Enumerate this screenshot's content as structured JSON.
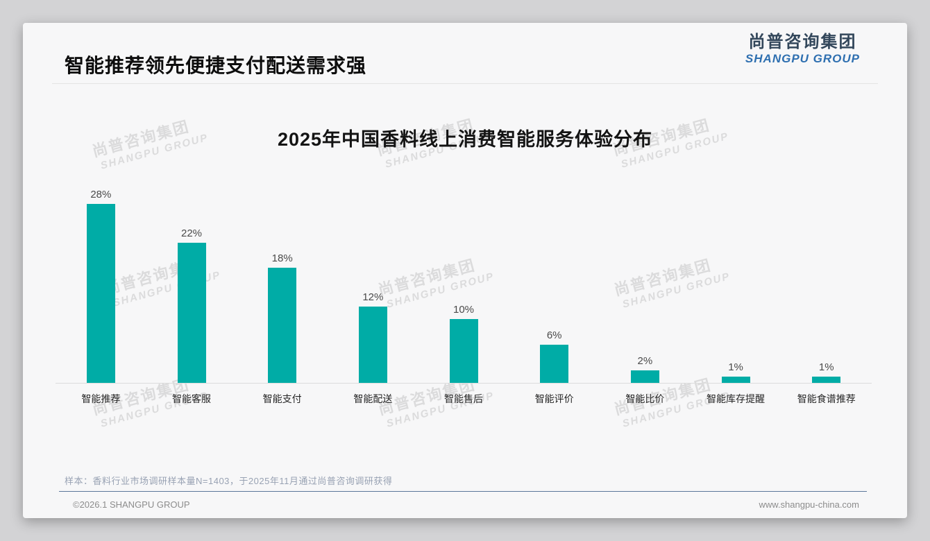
{
  "page": {
    "title": "智能推荐领先便捷支付配送需求强",
    "logo": {
      "cn": "尚普咨询集团",
      "en": "SHANGPU GROUP"
    },
    "watermark": {
      "cn": "尚普咨询集团",
      "en": "SHANGPU GROUP"
    },
    "footer": {
      "note": "样本：香料行业市场调研样本量N=1403，于2025年11月通过尚普咨询调研获得",
      "copyright": "©2026.1 SHANGPU GROUP",
      "website": "www.shangpu-china.com"
    }
  },
  "colors": {
    "bar": "#00aca6",
    "logo_cn": "#33475b",
    "logo_en": "#2e6fb0",
    "card_background": "#f7f7f8",
    "page_background": "#d3d3d5"
  },
  "chart_data": {
    "type": "bar",
    "title": "2025年中国香料线上消费智能服务体验分布",
    "categories": [
      "智能推荐",
      "智能客服",
      "智能支付",
      "智能配送",
      "智能售后",
      "智能评价",
      "智能比价",
      "智能库存提醒",
      "智能食谱推荐"
    ],
    "values": [
      28,
      22,
      18,
      12,
      10,
      6,
      2,
      1,
      1
    ],
    "value_labels": [
      "28%",
      "22%",
      "18%",
      "12%",
      "10%",
      "6%",
      "2%",
      "1%",
      "1%"
    ],
    "unit": "%",
    "ylim": [
      0,
      30
    ],
    "grid": false,
    "legend": "none",
    "bar_color": "#00aca6",
    "value_label_position": "above-bar"
  }
}
